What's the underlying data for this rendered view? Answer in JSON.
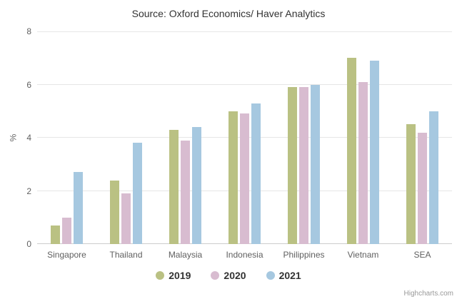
{
  "chart_data": {
    "type": "bar",
    "title": "Source: Oxford Economics/ Haver Analytics",
    "categories": [
      "Singapore",
      "Thailand",
      "Malaysia",
      "Indonesia",
      "Philippines",
      "Vietnam",
      "SEA"
    ],
    "series": [
      {
        "name": "2019",
        "color": "#bac183",
        "values": [
          0.7,
          2.4,
          4.3,
          5.0,
          5.9,
          7.0,
          4.5
        ]
      },
      {
        "name": "2020",
        "color": "#d8bcd0",
        "values": [
          1.0,
          1.9,
          3.9,
          4.9,
          5.9,
          6.1,
          4.2
        ]
      },
      {
        "name": "2021",
        "color": "#a6c8e0",
        "values": [
          2.7,
          3.8,
          4.4,
          5.3,
          6.0,
          6.9,
          5.0
        ]
      }
    ],
    "xlabel": "",
    "ylabel": "%",
    "ylim": [
      0,
      8
    ],
    "yticks": [
      0,
      2,
      4,
      6,
      8
    ],
    "grid": true,
    "legend_position": "bottom"
  },
  "credits": {
    "label": "Highcharts.com"
  },
  "colors": {
    "background": "#ffffff",
    "gridline": "#e6e6e6",
    "axis_line": "#cccccc",
    "tick_label": "#606060",
    "title_text": "#333333",
    "legend_text": "#333333",
    "credits_text": "#999999"
  }
}
